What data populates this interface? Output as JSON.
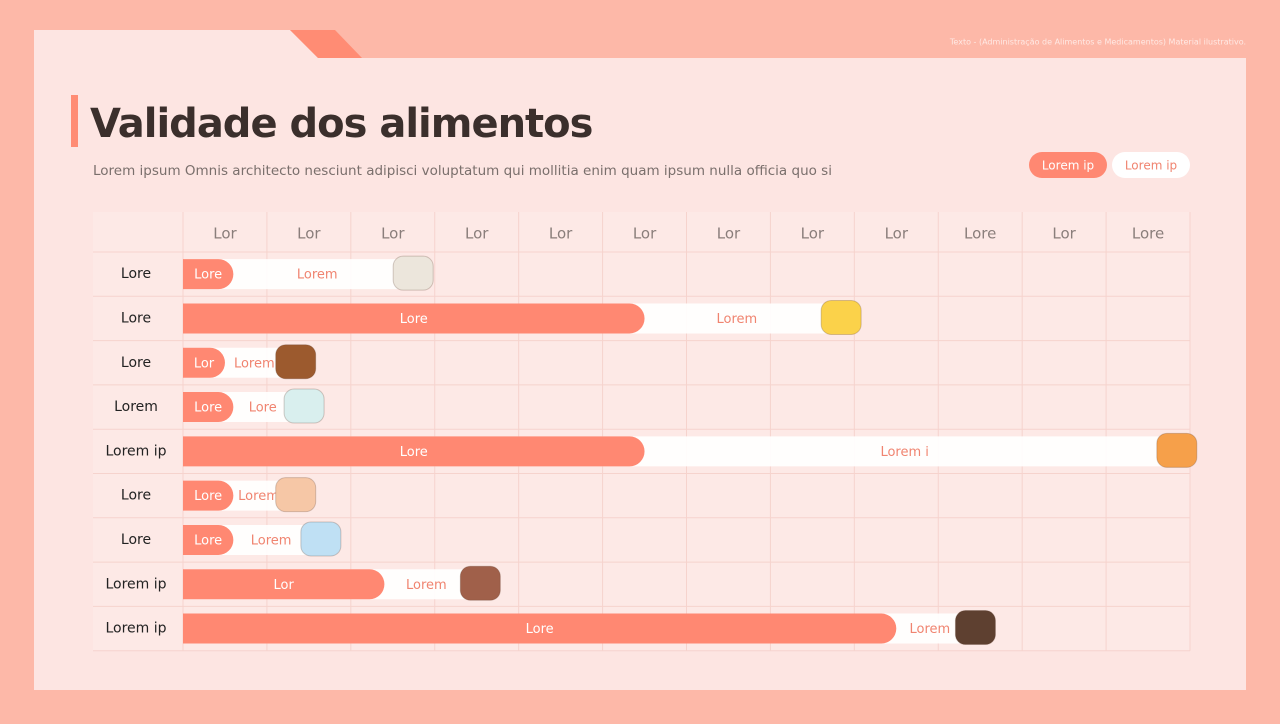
{
  "note_text": "Texto - (Administração de Alimentos e Medicamentos) Material ilustrativo.",
  "chart_data": {
    "type": "gantt-bar",
    "title": "Validade dos alimentos",
    "subtitle": "Lorem ipsum Omnis architecto nesciunt adipisci voluptatum qui mollitia enim quam ipsum nulla officia quo si",
    "categories": [
      "Lore",
      "Lore",
      "Lore",
      "Lorem",
      "Lorem ip",
      "Lore",
      "Lore",
      "Lorem ip",
      "Lorem ip"
    ],
    "xlim": [
      0,
      12
    ],
    "xticks": [
      {
        "value": 0.5,
        "label": "Lor"
      },
      {
        "value": 1.5,
        "label": "Lor"
      },
      {
        "value": 2.5,
        "label": "Lor"
      },
      {
        "value": 3.5,
        "label": "Lor"
      },
      {
        "value": 4.5,
        "label": "Lor"
      },
      {
        "value": 5.5,
        "label": "Lor"
      },
      {
        "value": 6.5,
        "label": "Lor"
      },
      {
        "value": 7.5,
        "label": "Lor"
      },
      {
        "value": 8.5,
        "label": "Lor"
      },
      {
        "value": 9.5,
        "label": "Lore"
      },
      {
        "value": 10.5,
        "label": "Lor"
      },
      {
        "value": 11.5,
        "label": "Lore"
      }
    ],
    "series": [
      {
        "name": "Lorem ip",
        "color": "#ff8872",
        "values": [
          0.6,
          5.5,
          0.5,
          0.6,
          5.5,
          0.6,
          0.6,
          2.4,
          8.5
        ],
        "value_labels": [
          "Lore",
          "Lore",
          "Lor",
          "Lore",
          "Lore",
          "Lore",
          "Lore",
          "Lor",
          "Lore"
        ]
      },
      {
        "name": "Lorem ip",
        "color": "#ffffff",
        "values": [
          2.0,
          2.2,
          0.7,
          0.7,
          6.2,
          0.6,
          0.9,
          1.0,
          0.8
        ],
        "value_labels": [
          "Lorem",
          "Lorem",
          "Lorem",
          "Lore",
          "Lorem i",
          "Lorem",
          "Lorem",
          "Lorem",
          "Lorem"
        ]
      }
    ]
  }
}
